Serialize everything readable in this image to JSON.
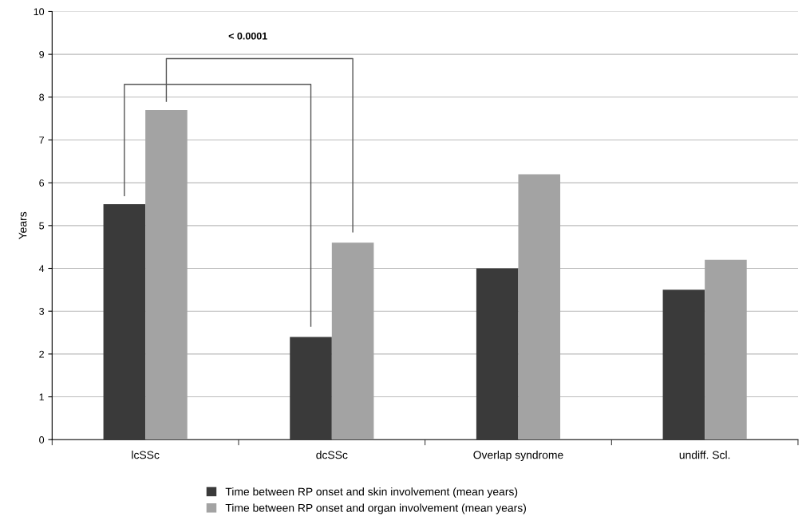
{
  "chart_data": {
    "type": "bar",
    "ylabel": "Years",
    "categories": [
      "lcSSc",
      "dcSSc",
      "Overlap syndrome",
      "undiff. Scl."
    ],
    "series": [
      {
        "name": "Time between RP onset and skin involvement (mean years)",
        "color": "#3a3a3a",
        "values": [
          5.5,
          2.4,
          4.0,
          3.5
        ]
      },
      {
        "name": "Time between RP onset and organ involvement (mean years)",
        "color": "#a3a3a3",
        "values": [
          7.7,
          4.6,
          6.2,
          4.2
        ]
      }
    ],
    "ylim": [
      0,
      10
    ],
    "yticks": [
      0,
      1,
      2,
      3,
      4,
      5,
      6,
      7,
      8,
      9,
      10
    ],
    "grid": "y",
    "legend": "bottom",
    "annotations": [
      "< 0.0001"
    ]
  }
}
